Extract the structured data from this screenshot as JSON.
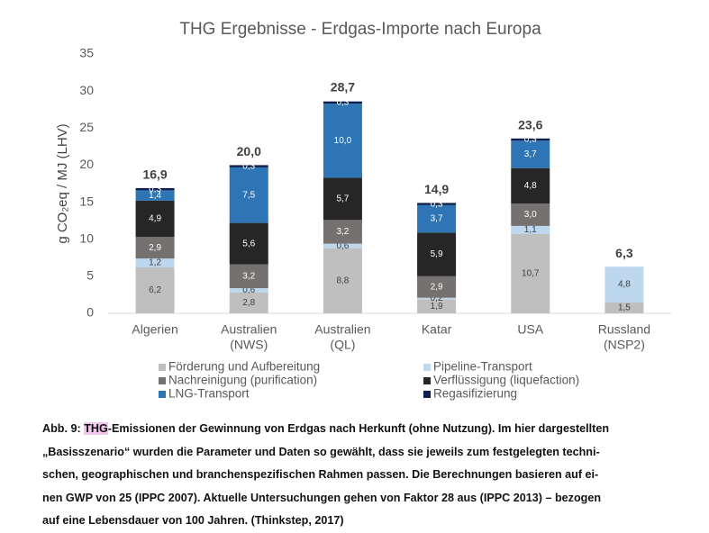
{
  "chart_data": {
    "type": "stacked_bar",
    "title": "THG Ergebnisse - Erdgas-Importe nach Europa",
    "ylabel": "g CO₂eq / MJ (LHV)",
    "categories": [
      [
        "Algerien"
      ],
      [
        "Australien",
        "(NWS)"
      ],
      [
        "Australien",
        "(QL)"
      ],
      [
        "Katar"
      ],
      [
        "USA"
      ],
      [
        "Russland",
        "(NSP2)"
      ]
    ],
    "ylim": [
      0,
      35
    ],
    "yticks": [
      0,
      5,
      10,
      15,
      20,
      25,
      30,
      35
    ],
    "grid": false,
    "series": [
      {
        "name": "Förderung und Aufbereitung",
        "color": "#bfbfbf",
        "values": [
          6.2,
          2.8,
          8.8,
          1.9,
          10.7,
          1.5
        ],
        "value_labels": [
          "6,2",
          "2,8",
          "8,8",
          "1,9",
          "10,7",
          "1,5"
        ]
      },
      {
        "name": "Pipeline-Transport",
        "color": "#bdd7ee",
        "values": [
          1.2,
          0.6,
          0.6,
          0.2,
          1.1,
          4.8
        ],
        "value_labels": [
          "1,2",
          "0,6",
          "0,6",
          "0,2",
          "1,1",
          "4,8"
        ]
      },
      {
        "name": "Nachreinigung (purification)",
        "color": "#767171",
        "values": [
          2.9,
          3.2,
          3.2,
          2.9,
          3.0,
          null
        ],
        "value_labels": [
          "2,9",
          "3,2",
          "3,2",
          "2,9",
          "3,0",
          null
        ]
      },
      {
        "name": "Verflüssigung (liquefaction)",
        "color": "#262626",
        "values": [
          4.9,
          5.6,
          5.7,
          5.9,
          4.8,
          null
        ],
        "value_labels": [
          "4,9",
          "5,6",
          "5,7",
          "5,9",
          "4,8",
          null
        ]
      },
      {
        "name": "LNG-Transport",
        "color": "#2e75b6",
        "values": [
          1.4,
          7.5,
          10.0,
          3.7,
          3.7,
          null
        ],
        "value_labels": [
          "1,4",
          "7,5",
          "10,0",
          "3,7",
          "3,7",
          null
        ]
      },
      {
        "name": "Regasifizierung",
        "color": "#0c1f4e",
        "values": [
          0.3,
          0.3,
          0.3,
          0.3,
          0.3,
          null
        ],
        "value_labels": [
          "0,3",
          "0,3",
          "0,3",
          "0,3",
          "0,3",
          null
        ]
      }
    ],
    "totals": [
      16.9,
      20.0,
      28.7,
      14.9,
      23.6,
      6.3
    ],
    "total_labels": [
      "16,9",
      "20,0",
      "28,7",
      "14,9",
      "23,6",
      "6,3"
    ]
  },
  "caption": {
    "label": "Abb. 9: ",
    "highlight": "THG",
    "lines": [
      "-Emissionen der Gewinnung von Erdgas nach Herkunft (ohne Nutzung).  Im hier dargestellten",
      "„Basisszenario“ wurden die Parameter und Daten so gewählt, dass sie jeweils zum festgelegten techni-",
      "schen, geographischen und branchenspezifischen Rahmen passen. Die Berechnungen basieren auf ei-",
      "nen GWP von 25 (IPPC 2007). Aktuelle Untersuchungen gehen von Faktor 28 aus (IPPC 2013) – bezogen",
      "auf eine Lebensdauer von 100 Jahren. (Thinkstep, 2017)"
    ]
  }
}
